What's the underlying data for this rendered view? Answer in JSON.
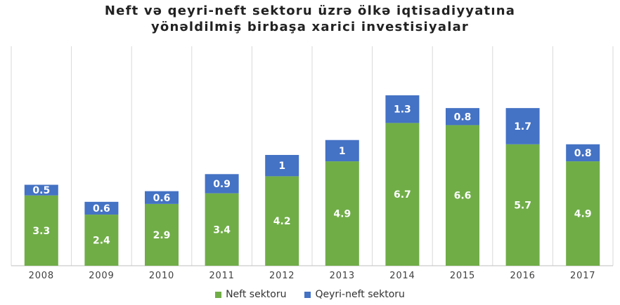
{
  "chart_data": {
    "type": "bar",
    "stacked": true,
    "title": "Neft və qeyri-neft sektoru üzrə ölkə iqtisadiyyatına yönəldilmiş birbaşa xarici investisiyalar",
    "title_lines": [
      "Neft və qeyri-neft sektoru üzrə ölkə iqtisadiyyatına",
      "yönəldilmiş birbaşa xarici investisiyalar"
    ],
    "categories": [
      "2008",
      "2009",
      "2010",
      "2011",
      "2012",
      "2013",
      "2014",
      "2015",
      "2016",
      "2017"
    ],
    "series": [
      {
        "name": "Neft sektoru",
        "color": "#70AD47",
        "values": [
          3.3,
          2.4,
          2.9,
          3.4,
          4.2,
          4.9,
          6.7,
          6.6,
          5.7,
          4.9
        ],
        "labels": [
          "3.3",
          "2.4",
          "2.9",
          "3.4",
          "4.2",
          "4.9",
          "6.7",
          "6.6",
          "5.7",
          "4.9"
        ]
      },
      {
        "name": "Qeyri-neft sektoru",
        "color": "#4472C4",
        "values": [
          0.5,
          0.6,
          0.6,
          0.9,
          1,
          1,
          1.3,
          0.8,
          1.7,
          0.8
        ],
        "labels": [
          "0.5",
          "0.6",
          "0.6",
          "0.9",
          "1",
          "1",
          "1.3",
          "0.8",
          "1.7",
          "0.8"
        ]
      }
    ],
    "xlabel": "",
    "ylabel": "",
    "ylim": [
      0,
      10.3
    ],
    "grid": "vertical-separators",
    "legend": "bottom-center"
  }
}
